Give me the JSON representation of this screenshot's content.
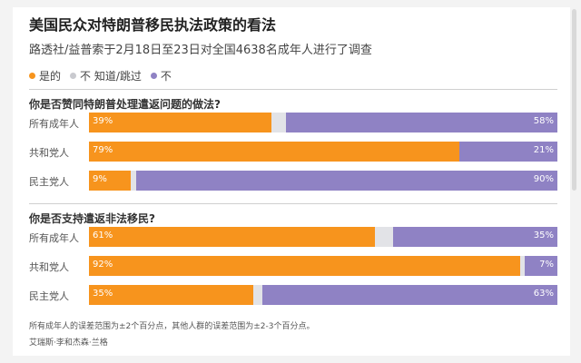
{
  "title": "美国民众对特朗普移民执法政策的看法",
  "subtitle": "路透社/益普索于2月18日至23日对全国4638名成年人进行了调查",
  "legend": [
    {
      "label": "是的",
      "color": "#f7941d"
    },
    {
      "label": "不 知道/跳过",
      "color": "#c9cacf"
    },
    {
      "label": "不",
      "color": "#8f82c4"
    }
  ],
  "chart_data": [
    {
      "type": "bar",
      "stacked": true,
      "orientation": "horizontal",
      "title": "你是否赞同特朗普处理遣返问题的做法?",
      "categories": [
        "所有成年人",
        "共和党人",
        "民主党人"
      ],
      "series": [
        {
          "name": "是的",
          "values": [
            39,
            79,
            9
          ]
        },
        {
          "name": "不 知道/跳过",
          "values": [
            3,
            0,
            1
          ]
        },
        {
          "name": "不",
          "values": [
            58,
            21,
            90
          ]
        }
      ],
      "value_labels": {
        "yes": [
          "39%",
          "79%",
          "9%"
        ],
        "no": [
          "58%",
          "21%",
          "90%"
        ]
      }
    },
    {
      "type": "bar",
      "stacked": true,
      "orientation": "horizontal",
      "title": "你是否支持遣返非法移民?",
      "categories": [
        "所有成年人",
        "共和党人",
        "民主党人"
      ],
      "series": [
        {
          "name": "是的",
          "values": [
            61,
            92,
            35
          ]
        },
        {
          "name": "不 知道/跳过",
          "values": [
            4,
            1,
            2
          ]
        },
        {
          "name": "不",
          "values": [
            35,
            7,
            63
          ]
        }
      ],
      "value_labels": {
        "yes": [
          "61%",
          "92%",
          "35%"
        ],
        "no": [
          "35%",
          "7%",
          "63%"
        ]
      }
    }
  ],
  "footnote": "所有成年人的误差范围为±2个百分点，其他人群的误差范围为±2-3个百分点。",
  "source": "艾瑞斯·李和杰森·兰格"
}
